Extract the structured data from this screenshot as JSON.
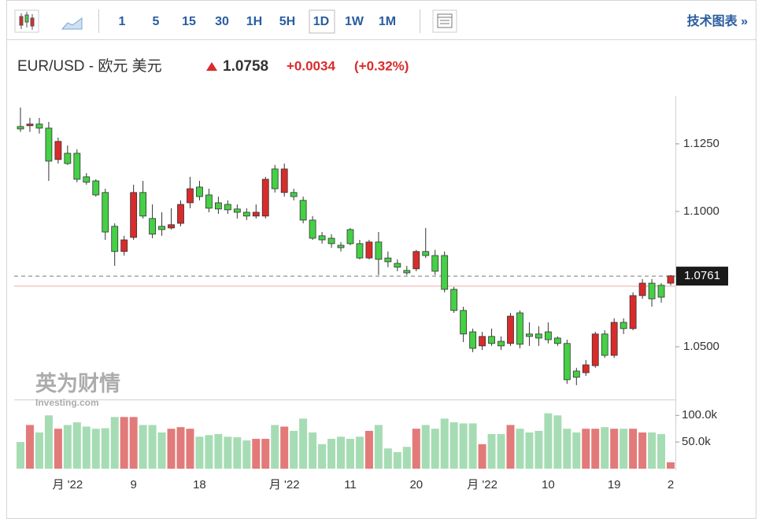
{
  "toolbar": {
    "intervals": [
      "1",
      "5",
      "15",
      "30",
      "1H",
      "5H",
      "1D",
      "1W",
      "1M"
    ],
    "active": "1D",
    "link": "技术图表 »"
  },
  "chart_data": {
    "type": "candlestick",
    "title": "EUR/USD - 欧元 美元",
    "price": "1.0758",
    "change": "+0.0034",
    "change_pct": "(+0.32%)",
    "watermark": "英为财情",
    "watermark_sub": "Investing.com",
    "up_color": "#d92b2b",
    "down_color": "#45d045",
    "volume_up_color": "#e27a7a",
    "volume_down_color": "#a6dcb4",
    "last_price": 1.0761,
    "prev_close": 1.0724,
    "categories": [
      null,
      null,
      null,
      null,
      null,
      "月 '22",
      null,
      null,
      null,
      null,
      null,
      null,
      "9",
      null,
      null,
      null,
      null,
      null,
      null,
      "18",
      null,
      null,
      null,
      null,
      null,
      null,
      null,
      null,
      "月 '22",
      null,
      null,
      null,
      null,
      null,
      null,
      "11",
      null,
      null,
      null,
      null,
      null,
      null,
      "20",
      null,
      null,
      null,
      null,
      null,
      null,
      "月 '22",
      null,
      null,
      null,
      null,
      null,
      null,
      "10",
      null,
      null,
      null,
      null,
      null,
      null,
      "19",
      null,
      null,
      null,
      null,
      null,
      "2"
    ],
    "open": [
      1.1314,
      1.1317,
      1.1323,
      1.1308,
      1.1192,
      1.1215,
      1.1215,
      1.1128,
      1.1113,
      1.107,
      1.0945,
      1.0852,
      1.0904,
      1.107,
      1.0974,
      1.0945,
      1.0939,
      1.0956,
      1.1032,
      1.109,
      1.1061,
      1.1032,
      1.1026,
      1.1009,
      1.0997,
      1.0983,
      1.0983,
      1.1157,
      1.107,
      1.107,
      1.1041,
      1.0968,
      1.091,
      1.0901,
      1.0875,
      1.0933,
      1.0881,
      1.0828,
      1.0887,
      1.0828,
      1.0808,
      1.0782,
      1.0788,
      1.0852,
      1.0837,
      1.0837,
      1.0712,
      1.0634,
      1.0555,
      1.0503,
      1.0538,
      1.052,
      1.0512,
      1.0625,
      1.0547,
      1.0547,
      1.0555,
      1.0532,
      1.0512,
      1.041,
      1.0404,
      1.043,
      1.0547,
      1.0468,
      1.059,
      1.0567,
      1.0689,
      1.0735,
      1.0727,
      1.0735
    ],
    "high": [
      1.1384,
      1.1346,
      1.1346,
      1.1331,
      1.1273,
      1.1244,
      1.123,
      1.1142,
      1.1119,
      1.1084,
      1.0956,
      1.091,
      1.1099,
      1.1113,
      1.1026,
      1.0997,
      1.1012,
      1.1041,
      1.1128,
      1.1113,
      1.1084,
      1.1055,
      1.1041,
      1.1026,
      1.1012,
      1.1026,
      1.1128,
      1.1172,
      1.1177,
      1.1084,
      1.1055,
      1.0983,
      1.0924,
      1.0916,
      1.0887,
      1.0939,
      1.0895,
      1.0895,
      1.0924,
      1.0852,
      1.0823,
      1.0799,
      1.0858,
      1.0939,
      1.0858,
      1.0852,
      1.0721,
      1.0648,
      1.0567,
      1.0555,
      1.0567,
      1.0538,
      1.0625,
      1.0634,
      1.059,
      1.0576,
      1.059,
      1.0538,
      1.0526,
      1.0422,
      1.0451,
      1.0555,
      1.0561,
      1.0605,
      1.0605,
      1.0701,
      1.075,
      1.075,
      1.0735,
      1.0765
    ],
    "low": [
      1.1294,
      1.1294,
      1.1288,
      1.1113,
      1.1177,
      1.1172,
      1.1108,
      1.1099,
      1.1055,
      1.0895,
      1.0799,
      1.0837,
      1.0895,
      1.0974,
      1.0901,
      1.091,
      1.0933,
      1.0945,
      1.1012,
      1.1041,
      1.0997,
      1.0991,
      1.0991,
      1.0974,
      1.0968,
      1.0974,
      1.0974,
      1.107,
      1.1055,
      1.1041,
      1.0956,
      1.0895,
      1.0881,
      1.0866,
      1.0852,
      1.0875,
      1.0823,
      1.0823,
      1.0765,
      1.0794,
      1.0779,
      1.0765,
      1.0779,
      1.0828,
      1.0765,
      1.0701,
      1.0625,
      1.0517,
      1.048,
      1.0488,
      1.0503,
      1.0488,
      1.0503,
      1.0494,
      1.0503,
      1.0503,
      1.0512,
      1.0503,
      1.0363,
      1.0358,
      1.0392,
      1.0422,
      1.0459,
      1.0459,
      1.0547,
      1.0561,
      1.0677,
      1.0648,
      1.0663,
      1.0727
    ],
    "close": [
      1.1305,
      1.1323,
      1.1308,
      1.1186,
      1.1259,
      1.1177,
      1.1119,
      1.1108,
      1.1061,
      1.0924,
      1.0852,
      1.0895,
      1.107,
      1.0983,
      1.0916,
      1.0933,
      1.0951,
      1.1026,
      1.1084,
      1.1055,
      1.1012,
      1.1009,
      1.1006,
      1.0997,
      1.0983,
      1.0997,
      1.1119,
      1.1084,
      1.1157,
      1.1055,
      1.0968,
      1.0901,
      1.0895,
      1.0881,
      1.0866,
      1.0881,
      1.0828,
      1.0887,
      1.0823,
      1.0814,
      1.0794,
      1.0773,
      1.0852,
      1.0837,
      1.0779,
      1.0712,
      1.0634,
      1.0547,
      1.0494,
      1.0538,
      1.0512,
      1.0503,
      1.0613,
      1.0509,
      1.0538,
      1.0532,
      1.0526,
      1.0512,
      1.0378,
      1.0387,
      1.0433,
      1.0547,
      1.0468,
      1.059,
      1.0567,
      1.0689,
      1.0735,
      1.0677,
      1.0683,
      1.0762
    ],
    "volume": [
      50000,
      82000,
      68000,
      100000,
      75000,
      82000,
      87000,
      79000,
      75000,
      76000,
      97000,
      97000,
      97000,
      82000,
      82000,
      68000,
      75000,
      78000,
      75000,
      60000,
      63000,
      65000,
      60000,
      59000,
      53000,
      56000,
      56000,
      82000,
      79000,
      71000,
      94000,
      68000,
      46000,
      56000,
      60000,
      56000,
      60000,
      71000,
      82000,
      38000,
      31000,
      41000,
      75000,
      82000,
      75000,
      94000,
      87000,
      85000,
      85000,
      46000,
      65000,
      65000,
      82000,
      75000,
      68000,
      71000,
      104000,
      100000,
      75000,
      68000,
      75000,
      75000,
      78000,
      75000,
      75000,
      75000,
      68000,
      68000,
      65000,
      12000
    ],
    "ylim": [
      1.0305,
      1.1427
    ],
    "yticks": [
      {
        "value": 1.125,
        "label": "1.1250"
      },
      {
        "value": 1.1,
        "label": "1.1000"
      },
      {
        "value": 1.05,
        "label": "1.0500"
      }
    ],
    "volume_ylim": [
      0,
      124000
    ],
    "volume_yticks": [
      {
        "value": 100000,
        "label": "100.0k"
      },
      {
        "value": 50000,
        "label": "50.0k"
      }
    ]
  }
}
